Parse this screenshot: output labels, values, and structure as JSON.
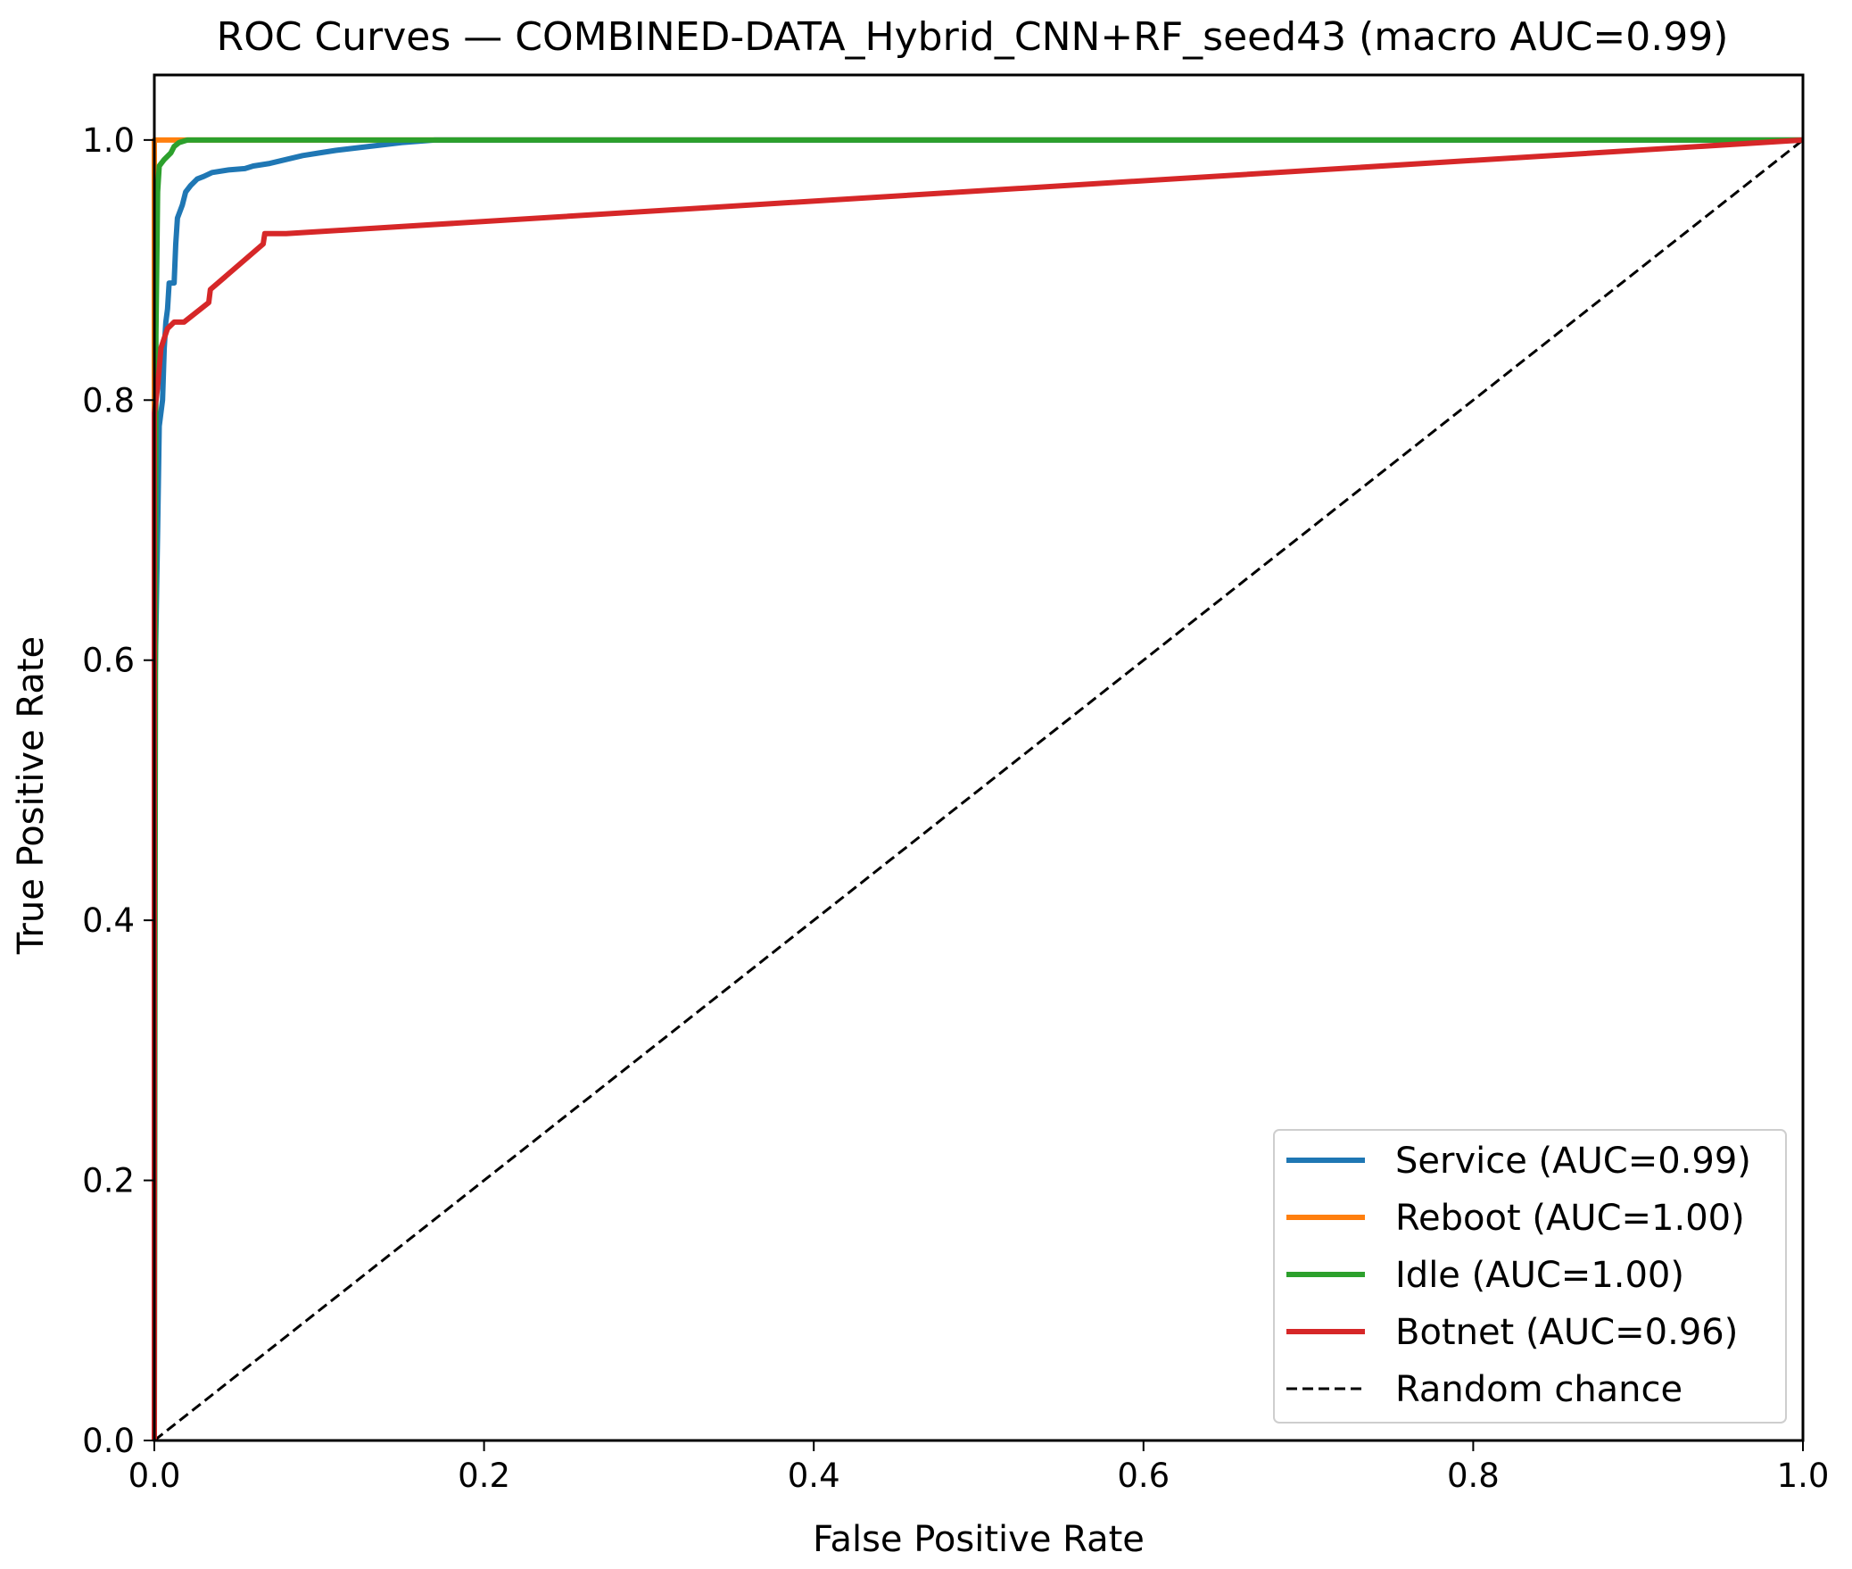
{
  "chart_data": {
    "type": "line",
    "title": "ROC Curves — COMBINED-DATA_Hybrid_CNN+RF_seed43 (macro AUC=0.99)",
    "xlabel": "False Positive Rate",
    "ylabel": "True Positive Rate",
    "xlim": [
      0.0,
      1.0
    ],
    "ylim": [
      0.0,
      1.05
    ],
    "xticks": [
      "0.0",
      "0.2",
      "0.4",
      "0.6",
      "0.8",
      "1.0"
    ],
    "yticks": [
      "0.0",
      "0.2",
      "0.4",
      "0.6",
      "0.8",
      "1.0"
    ],
    "grid": false,
    "legend_position": "lower-right",
    "series": [
      {
        "name": "Service (AUC=0.99)",
        "color": "#1f77b4",
        "points": [
          [
            0,
            0
          ],
          [
            0.0,
            0.55
          ],
          [
            0.002,
            0.7
          ],
          [
            0.003,
            0.78
          ],
          [
            0.005,
            0.8
          ],
          [
            0.006,
            0.84
          ],
          [
            0.007,
            0.86
          ],
          [
            0.008,
            0.87
          ],
          [
            0.009,
            0.89
          ],
          [
            0.012,
            0.89
          ],
          [
            0.013,
            0.92
          ],
          [
            0.014,
            0.94
          ],
          [
            0.017,
            0.95
          ],
          [
            0.019,
            0.96
          ],
          [
            0.022,
            0.965
          ],
          [
            0.026,
            0.97
          ],
          [
            0.03,
            0.972
          ],
          [
            0.035,
            0.975
          ],
          [
            0.045,
            0.977
          ],
          [
            0.055,
            0.978
          ],
          [
            0.06,
            0.98
          ],
          [
            0.07,
            0.982
          ],
          [
            0.08,
            0.985
          ],
          [
            0.09,
            0.988
          ],
          [
            0.1,
            0.99
          ],
          [
            0.11,
            0.992
          ],
          [
            0.13,
            0.995
          ],
          [
            0.15,
            0.998
          ],
          [
            0.17,
            1.0
          ],
          [
            1.0,
            1.0
          ]
        ]
      },
      {
        "name": "Reboot (AUC=1.00)",
        "color": "#ff7f0e",
        "points": [
          [
            0,
            0
          ],
          [
            0.0,
            1.0
          ],
          [
            1.0,
            1.0
          ]
        ]
      },
      {
        "name": "Idle (AUC=1.00)",
        "color": "#2ca02c",
        "points": [
          [
            0,
            0
          ],
          [
            0.001,
            0.85
          ],
          [
            0.002,
            0.96
          ],
          [
            0.003,
            0.98
          ],
          [
            0.006,
            0.985
          ],
          [
            0.01,
            0.99
          ],
          [
            0.012,
            0.995
          ],
          [
            0.015,
            0.998
          ],
          [
            0.02,
            1.0
          ],
          [
            1.0,
            1.0
          ]
        ]
      },
      {
        "name": "Botnet (AUC=0.96)",
        "color": "#d62728",
        "points": [
          [
            0,
            0
          ],
          [
            0.0,
            0.79
          ],
          [
            0.002,
            0.81
          ],
          [
            0.004,
            0.84
          ],
          [
            0.008,
            0.855
          ],
          [
            0.012,
            0.86
          ],
          [
            0.018,
            0.86
          ],
          [
            0.033,
            0.875
          ],
          [
            0.034,
            0.885
          ],
          [
            0.066,
            0.92
          ],
          [
            0.067,
            0.928
          ],
          [
            0.08,
            0.928
          ],
          [
            1.0,
            1.0
          ]
        ]
      },
      {
        "name": "Random chance",
        "color": "#000000",
        "dashed": true,
        "points": [
          [
            0,
            0
          ],
          [
            1,
            1
          ]
        ]
      }
    ]
  }
}
